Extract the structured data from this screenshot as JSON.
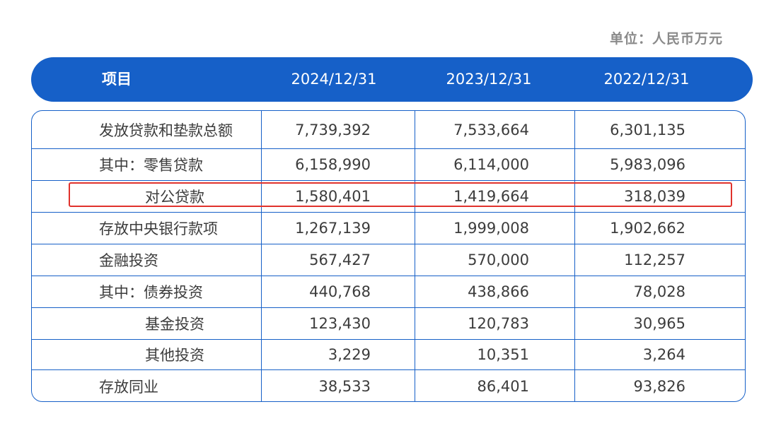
{
  "unit_label": "单位：人民币万元",
  "header": {
    "item": "项目",
    "years": [
      "2024/12/31",
      "2023/12/31",
      "2022/12/31"
    ]
  },
  "rows": [
    {
      "label": "发放贷款和垫款总额",
      "values": [
        "7,739,392",
        "7,533,664",
        "6,301,135"
      ]
    },
    {
      "label": "其中：零售贷款",
      "values": [
        "6,158,990",
        "6,114,000",
        "5,983,096"
      ]
    },
    {
      "label": "对公贷款",
      "values": [
        "1,580,401",
        "1,419,664",
        "318,039"
      ],
      "highlighted": true
    },
    {
      "label": "存放中央银行款项",
      "values": [
        "1,267,139",
        "1,999,008",
        "1,902,662"
      ]
    },
    {
      "label": "金融投资",
      "values": [
        "567,427",
        "570,000",
        "112,257"
      ]
    },
    {
      "label": "其中：债券投资",
      "values": [
        "440,768",
        "438,866",
        "78,028"
      ]
    },
    {
      "label": "基金投资",
      "values": [
        "123,430",
        "120,783",
        "30,965"
      ]
    },
    {
      "label": "其他投资",
      "values": [
        "3,229",
        "10,351",
        "3,264"
      ]
    },
    {
      "label": "存放同业",
      "values": [
        "38,533",
        "86,401",
        "93,826"
      ]
    }
  ],
  "colors": {
    "header_bg": "#1660c8",
    "border": "#1660c8",
    "highlight": "#e0322c"
  }
}
